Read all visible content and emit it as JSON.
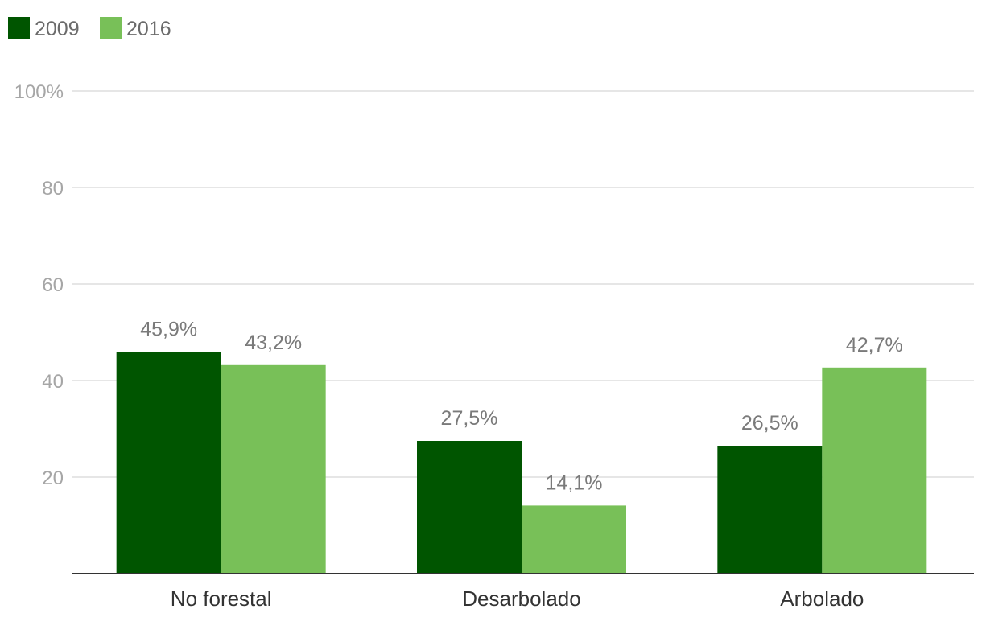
{
  "chart_data": {
    "type": "bar",
    "title": "",
    "xlabel": "",
    "ylabel": "",
    "categories": [
      "No forestal",
      "Desarbolado",
      "Arbolado"
    ],
    "series": [
      {
        "name": "2009",
        "color": "#005500",
        "values": [
          45.9,
          27.5,
          26.5
        ],
        "labels": [
          "45,9%",
          "27,5%",
          "26,5%"
        ]
      },
      {
        "name": "2016",
        "color": "#78c058",
        "values": [
          43.2,
          14.1,
          42.7
        ],
        "labels": [
          "43,2%",
          "14,1%",
          "42,7%"
        ]
      }
    ],
    "ylim": [
      0,
      100
    ],
    "yticks": [
      20,
      40,
      60,
      80,
      100
    ],
    "ytick_labels": [
      "20",
      "40",
      "60",
      "80",
      "100%"
    ],
    "grid": true,
    "legend_position": "top-left"
  }
}
